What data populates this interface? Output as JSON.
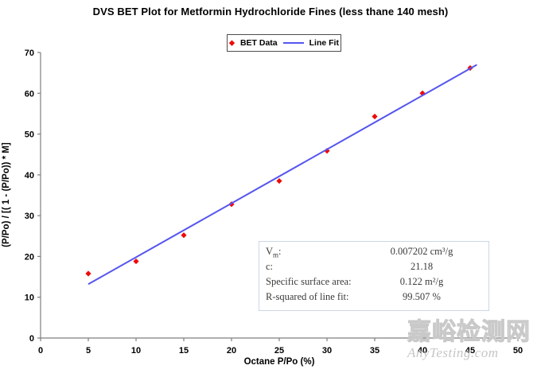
{
  "chart_data": {
    "type": "scatter",
    "title": "DVS BET Plot for Metformin Hydrochloride Fines (less thane 140 mesh)",
    "xlabel": "Octane P/Po (%)",
    "ylabel": "(P/Po) / [( 1 - (P/Po)) * M]",
    "xlim": [
      0,
      50
    ],
    "ylim": [
      0,
      70
    ],
    "xticks": [
      0,
      5,
      10,
      15,
      20,
      25,
      30,
      35,
      40,
      45,
      50
    ],
    "yticks": [
      0,
      10,
      20,
      30,
      40,
      50,
      60,
      70
    ],
    "grid": false,
    "legend_position": "top-center",
    "series": [
      {
        "name": "BET Data",
        "type": "scatter",
        "marker": "diamond",
        "color": "#ee0a0a",
        "x": [
          5,
          10,
          15,
          20,
          25,
          30,
          35,
          40,
          45
        ],
        "y": [
          15.8,
          18.8,
          25.2,
          32.8,
          38.5,
          45.9,
          54.3,
          60.0,
          66.2
        ]
      },
      {
        "name": "Line Fit",
        "type": "line",
        "color": "#5555f0",
        "slope": 1.323,
        "intercept": 6.56,
        "x": [
          5,
          45.7
        ],
        "y": [
          13.2,
          67.0
        ]
      }
    ]
  },
  "stats_box": {
    "rows": [
      {
        "label_pre": "V",
        "label_sub": "m",
        "label_post": ":",
        "value": "0.007202 cm³/g"
      },
      {
        "label_pre": "c:",
        "label_sub": "",
        "label_post": "",
        "value": "21.18"
      },
      {
        "label_pre": "Specific surface area:",
        "label_sub": "",
        "label_post": "",
        "value": "0.122 m²/g"
      },
      {
        "label_pre": "R-squared of line fit:",
        "label_sub": "",
        "label_post": "",
        "value": "99.507 %"
      }
    ]
  },
  "watermark": {
    "line1": "嘉峪检测网",
    "line2": "AnyTesting.com"
  },
  "colors": {
    "marker": "#ee0a0a",
    "line": "#5555f0",
    "axis": "#7f7f7f",
    "stats_border": "#ccd6e8"
  }
}
